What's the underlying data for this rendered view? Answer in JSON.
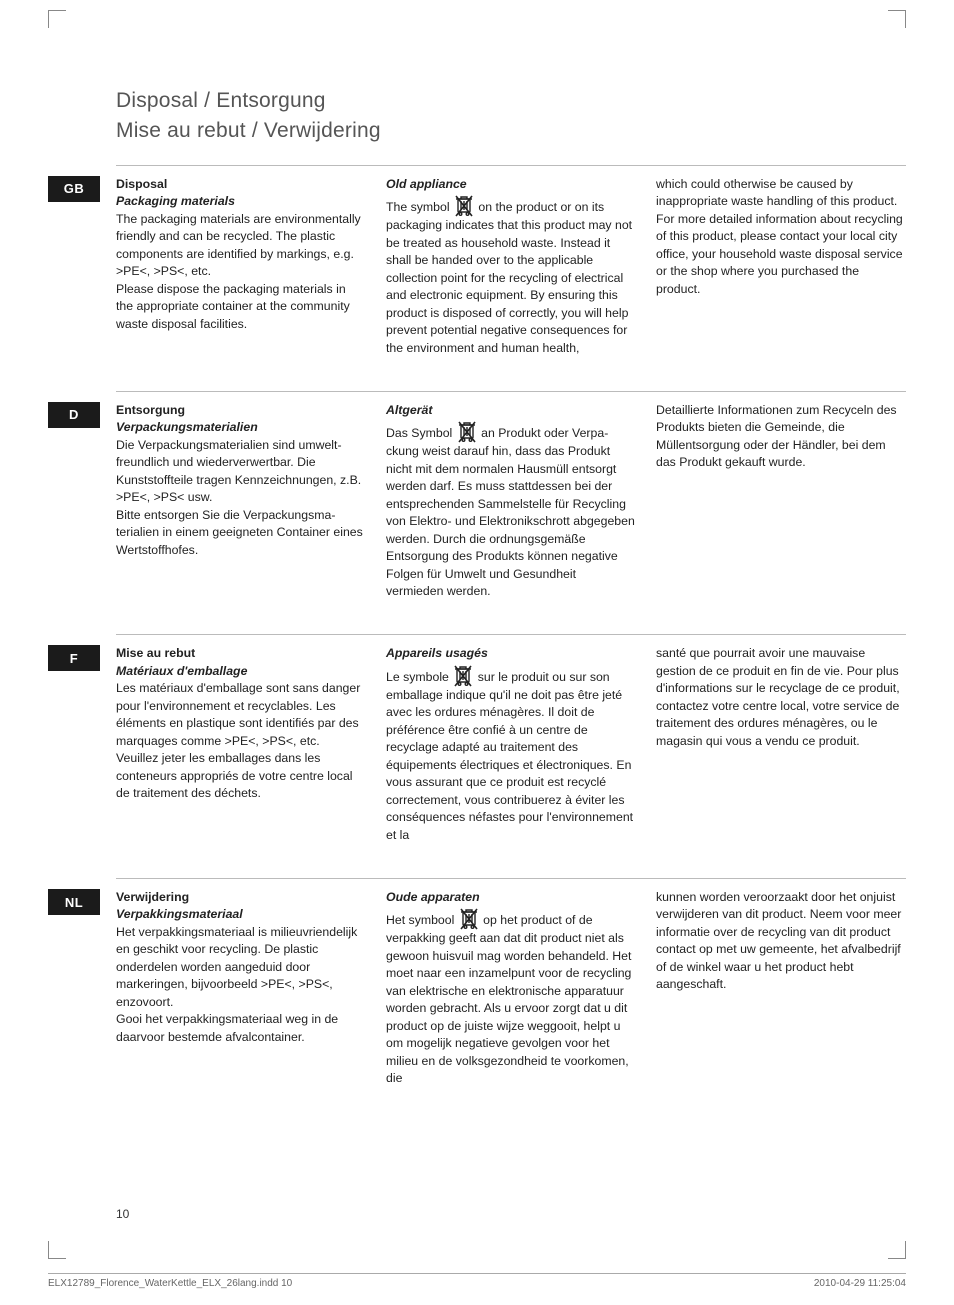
{
  "titles": {
    "line1": "Disposal  /  Entsorgung",
    "line2": "Mise au rebut  /  Verwijdering"
  },
  "weee_icon_name": "weee-bin-icon",
  "sections": [
    {
      "badge": "GB",
      "col1_heading": "Disposal",
      "col1_sub": "Packaging materials",
      "col1_body": "The packaging materials are environ­mentally friendly and can be recycled. The plastic components are identified by markings, e.g. >PE<, >PS<, etc.\nPlease dispose the packaging materials in the appropriate container at the community waste disposal facilities.",
      "col2_heading": "Old appliance",
      "col2_pre": "The symbol ",
      "col2_post": " on the product or on its packaging indicates that this product may not be treated as household waste. Instead it shall be handed over to the applicable collection point for the recycling of electrical and electronic equipment. By ensuring this product is disposed of correctly, you will help prevent potential negative consequences for the environment and human health,",
      "col3_body": "which could otherwise be caused by inappropriate waste handling of this product. For more detailed information about recycling of this product, please contact your local city office, your household waste disposal service or the shop where you purchased the product."
    },
    {
      "badge": "D",
      "col1_heading": "Entsorgung",
      "col1_sub": "Verpackungsmaterialien",
      "col1_body": "Die Verpackungsmaterialien sind umwelt­freundlich und wiederverwertbar. Die Kunststoffteile tragen Kennzeichnungen, z.B. >PE<, >PS< usw.\nBitte entsorgen Sie die Verpackungsma­terialien in einem geeigneten Container eines Wertstoffhofes.",
      "col2_heading": "Altgerät",
      "col2_pre": "Das Symbol ",
      "col2_post": " an Produkt oder Verpa­ckung weist darauf hin, dass das Produkt nicht mit dem normalen Hausmüll ent­sorgt werden darf. Es muss stattdessen bei der entsprechenden Sammelstelle für Recycling von Elektro- und Elektro­nikschrott abgegeben werden. Durch die ordnungsgemäße Entsorgung des Produkts können negative Folgen für Um­welt und Gesundheit vermieden werden.",
      "col3_body": "Detaillierte Informationen zum Recyceln des Produkts bieten die Gemeinde, die Müllentsorgung oder der Händler, bei dem das Produkt gekauft wurde."
    },
    {
      "badge": "F",
      "col1_heading": "Mise au rebut",
      "col1_sub": "Matériaux d'emballage",
      "col1_body": "Les matériaux d'emballage sont sans danger pour l'environnement et recyclables. Les éléments en plastique sont identifiés par des marquages comme >PE<, >PS<, etc.\nVeuillez jeter les emballages dans les conteneurs appropriés de votre centre local de traitement des déchets.",
      "col2_heading": "Appareils usagés",
      "col2_pre": "Le symbole ",
      "col2_post": " sur le produit ou sur son emballage indique qu'il ne doit pas être jeté avec les ordures ménagères. Il doit de préférence être confié à un centre de recyclage adapté au traitement des équipements électriques et électroniques. En vous assurant que ce produit est recyclé correctement, vous contribuerez à éviter les conséquences néfastes pour l'environnement et la",
      "col3_body": "santé que pourrait avoir une mauvaise gestion de ce produit en fin de vie. Pour plus d'informations sur le recyclage de ce produit, contactez votre centre local, votre service de traitement des ordures ménagères, ou le magasin qui vous a vendu ce produit."
    },
    {
      "badge": "NL",
      "col1_heading": "Verwijdering",
      "col1_sub": "Verpakkingsmateriaal",
      "col1_body": "Het verpakkingsmateriaal is milieuvrien­delijk en geschikt voor recycling. De plas­tic onderdelen worden aangeduid door markeringen, bijvoorbeeld >PE<, >PS<, enzovoort.\nGooi het verpakkingsmateriaal weg in de daarvoor bestemde afvalcontainer.",
      "col2_heading": "Oude apparaten",
      "col2_pre": "Het symbool ",
      "col2_post": " op het product of de verpakking geeft aan dat dit product niet als gewoon huisvuil mag worden behan­deld. Het moet naar een inzamelpunt voor de recycling van elektrische en elek­tronische apparatuur worden gebracht. Als u ervoor zorgt dat u dit product op de juiste wijze weggooit, helpt u om moge­lijk negatieve gevolgen voor het milieu en de volksgezondheid te voorkomen, die",
      "col3_body": "kunnen worden veroorzaakt door het on­juist verwijderen van dit product. Neem voor meer informatie over de recycling van dit product contact op met uw ge­meente, het afvalbedrijf of de winkel waar u het product hebt aangeschaft."
    }
  ],
  "page_number": "10",
  "footer": {
    "left": "ELX12789_Florence_WaterKettle_ELX_26lang.indd   10",
    "right": "2010-04-29   11:25:04"
  }
}
